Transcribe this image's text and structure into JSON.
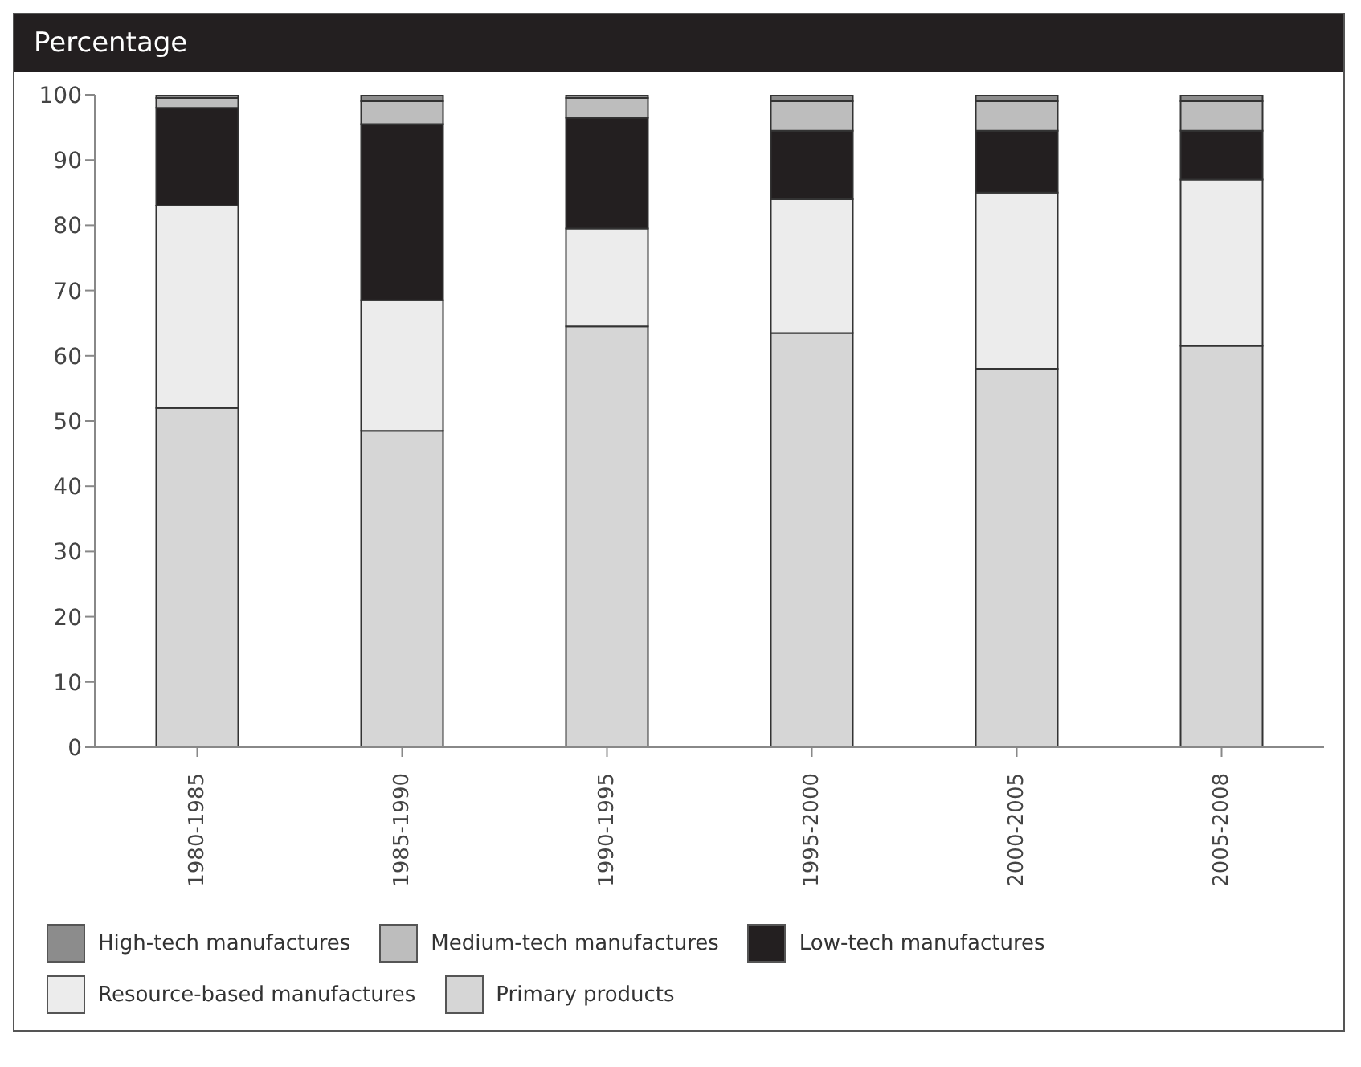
{
  "chart_data": {
    "type": "bar",
    "stacked": true,
    "ylabel": "Percentage",
    "categories": [
      "1980-1985",
      "1985-1990",
      "1990-1995",
      "1995-2000",
      "2000-2005",
      "2005-2008"
    ],
    "series": [
      {
        "name": "Primary products",
        "color": "#d6d6d6",
        "values": [
          52,
          48.5,
          64.5,
          63.5,
          58,
          61.5
        ]
      },
      {
        "name": "Resource-based manufactures",
        "color": "#ececec",
        "values": [
          31,
          20,
          15,
          20.5,
          27,
          25.5
        ]
      },
      {
        "name": "Low-tech manufactures",
        "color": "#231f20",
        "values": [
          15,
          27,
          17,
          10.5,
          9.5,
          7.5
        ]
      },
      {
        "name": "Medium-tech manufactures",
        "color": "#bdbdbd",
        "values": [
          1.5,
          3.5,
          3,
          4.5,
          4.5,
          4.5
        ]
      },
      {
        "name": "High-tech manufactures",
        "color": "#8c8c8c",
        "values": [
          0.5,
          1,
          0.5,
          1,
          1,
          1
        ]
      }
    ],
    "ylim": [
      0,
      100
    ],
    "yticks": [
      0,
      10,
      20,
      30,
      40,
      50,
      60,
      70,
      80,
      90,
      100
    ],
    "grid": false,
    "legend": "bottom"
  }
}
